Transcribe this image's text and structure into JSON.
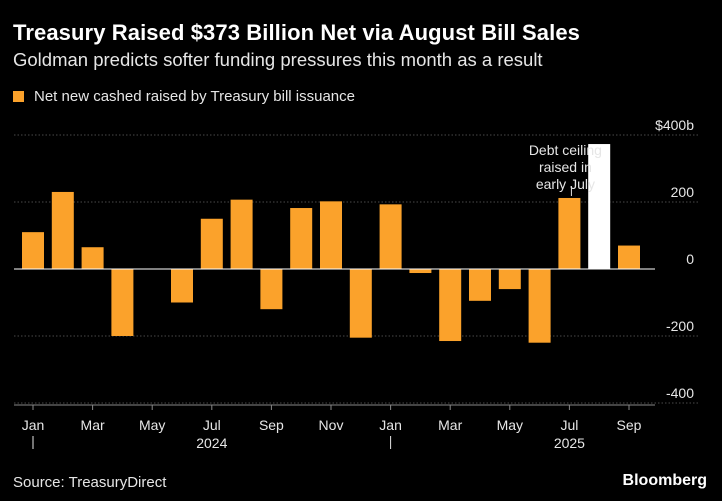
{
  "title": "Treasury Raised $373 Billion Net via August Bill Sales",
  "subtitle": "Goldman predicts softer funding pressures this month as a result",
  "legend": {
    "label": "Net new cashed raised by Treasury bill issuance"
  },
  "colors": {
    "bar": "#fba22b",
    "highlight": "#ffffff",
    "background": "#000000"
  },
  "source": "Source: TreasuryDirect",
  "brand": "Bloomberg",
  "chart_data": {
    "type": "bar",
    "series": [
      {
        "name": "Net new cashed raised by Treasury bill issuance",
        "x": [
          "2024-01",
          "2024-02",
          "2024-03",
          "2024-04",
          "2024-05",
          "2024-06",
          "2024-07",
          "2024-08",
          "2024-09",
          "2024-10",
          "2024-11",
          "2024-12",
          "2025-01",
          "2025-02",
          "2025-03",
          "2025-04",
          "2025-05",
          "2025-06",
          "2025-07",
          "2025-08",
          "2025-09"
        ],
        "values": [
          110,
          230,
          65,
          -200,
          null,
          -100,
          150,
          207,
          -120,
          182,
          202,
          -205,
          193,
          -12,
          -215,
          -95,
          -60,
          -220,
          212,
          373,
          70
        ]
      }
    ],
    "highlight_index": 19,
    "ylim": [
      -400,
      400
    ],
    "yticks": [
      {
        "value": 400,
        "label": "$400b"
      },
      {
        "value": 200,
        "label": "200"
      },
      {
        "value": 0,
        "label": "0"
      },
      {
        "value": -200,
        "label": "-200"
      },
      {
        "value": -400,
        "label": "-400"
      }
    ],
    "xticks": [
      {
        "index": 0,
        "label": "Jan"
      },
      {
        "index": 2,
        "label": "Mar"
      },
      {
        "index": 4,
        "label": "May"
      },
      {
        "index": 6,
        "label": "Jul"
      },
      {
        "index": 8,
        "label": "Sep"
      },
      {
        "index": 10,
        "label": "Nov"
      },
      {
        "index": 12,
        "label": "Jan"
      },
      {
        "index": 14,
        "label": "Mar"
      },
      {
        "index": 16,
        "label": "May"
      },
      {
        "index": 18,
        "label": "Jul"
      },
      {
        "index": 20,
        "label": "Sep"
      }
    ],
    "year_labels": [
      {
        "index": 0,
        "label": "2024"
      },
      {
        "index": 12,
        "label": "2025"
      }
    ],
    "annotation": {
      "index": 18,
      "lines": [
        "Debt ceiling",
        "raised in",
        "early July"
      ]
    },
    "grid": "horizontal"
  }
}
